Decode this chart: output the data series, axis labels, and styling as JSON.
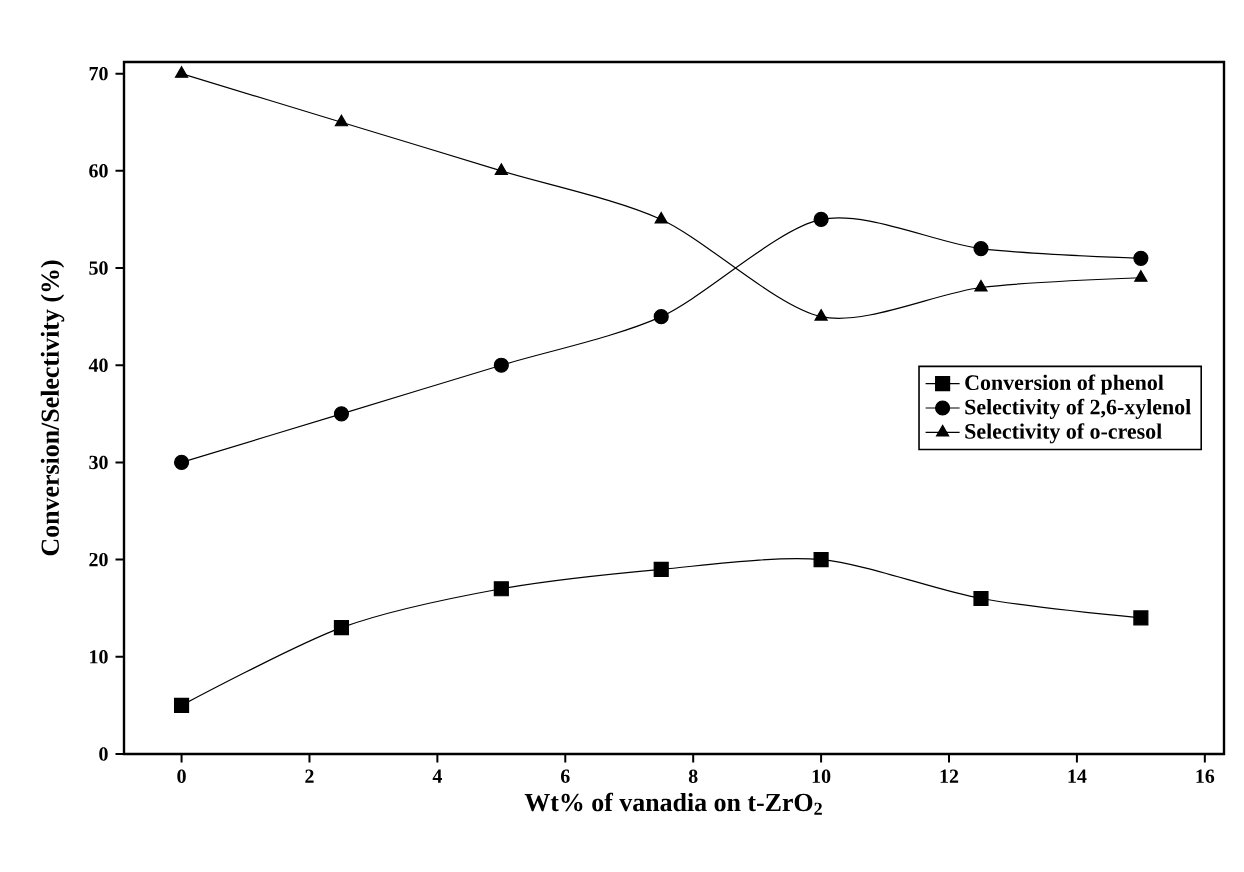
{
  "chart_data": {
    "type": "line",
    "xlabel": "Wt% of vanadia on t-ZrO$_{2}$",
    "ylabel": "Conversion/Selectivity (%)",
    "x": [
      0,
      2.5,
      5,
      7.5,
      10,
      12.5,
      15
    ],
    "series": [
      {
        "name": "Conversion of phenol",
        "color": "#000000",
        "marker": "square",
        "values": [
          5,
          13,
          17,
          19,
          20,
          16,
          14
        ]
      },
      {
        "name": "Selectivity of 2,6-xylenol",
        "color": "#000000",
        "marker": "circle",
        "values": [
          30,
          35,
          40,
          45,
          55,
          52,
          51
        ]
      },
      {
        "name": "Selectivity of o-cresol",
        "color": "#000000",
        "marker": "triangle",
        "values": [
          70,
          65,
          60,
          55,
          45,
          48,
          49
        ]
      }
    ],
    "xlim": [
      -0.9,
      16.3
    ],
    "ylim": [
      0,
      71.2
    ],
    "xticks": [
      0,
      2,
      4,
      6,
      8,
      10,
      12,
      14,
      16
    ],
    "yticks": [
      0,
      10,
      20,
      30,
      40,
      50,
      60,
      70
    ],
    "legend": "right",
    "line_style": "solid"
  }
}
